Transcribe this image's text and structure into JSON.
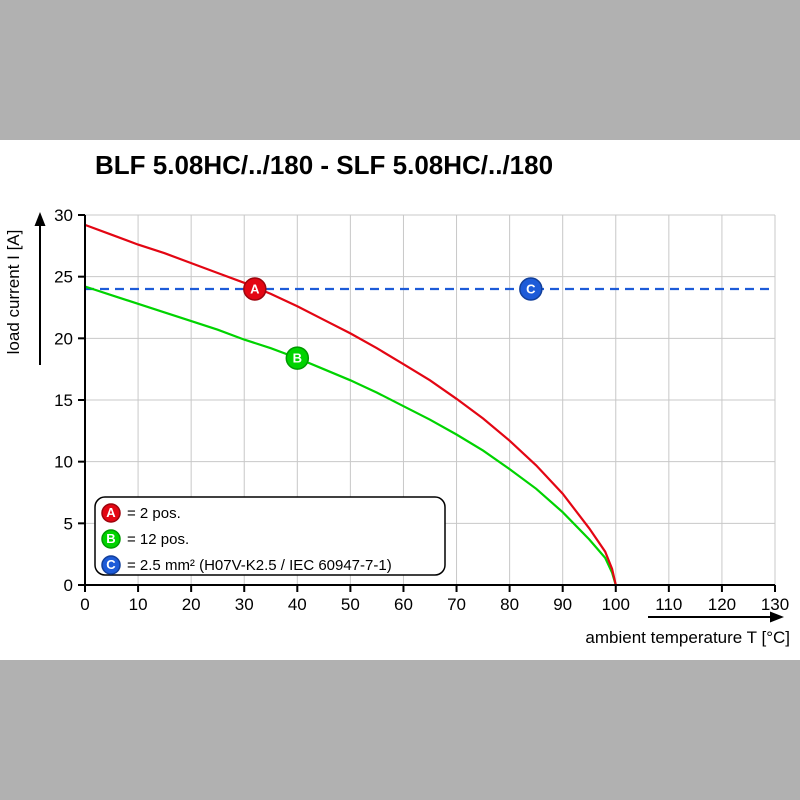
{
  "colors": {
    "background": "#b1b1b1",
    "panel": "#ffffff",
    "grid": "#c8c8c8",
    "axis": "#000000",
    "red": "#e30613",
    "green": "#00d300",
    "blue": "#1d5bd8"
  },
  "chart_data": {
    "type": "line",
    "title": "BLF 5.08HC/../180 - SLF 5.08HC/../180",
    "xlabel": "ambient temperature T [°C]",
    "ylabel": "load current I [A]",
    "xlim": [
      0,
      130
    ],
    "ylim": [
      0,
      30
    ],
    "xticks": [
      0,
      10,
      20,
      30,
      40,
      50,
      60,
      70,
      80,
      90,
      100,
      110,
      120,
      130
    ],
    "yticks": [
      0,
      5,
      10,
      15,
      20,
      25,
      30
    ],
    "grid": true,
    "legend_position": "bottom-left",
    "series": [
      {
        "name": "A",
        "label": "= 2 pos.",
        "color": "#e30613",
        "ring": "#9c040d",
        "style": "solid",
        "points": [
          [
            0,
            29.2
          ],
          [
            5,
            28.4
          ],
          [
            10,
            27.6
          ],
          [
            15,
            26.9
          ],
          [
            20,
            26.1
          ],
          [
            25,
            25.3
          ],
          [
            30,
            24.5
          ],
          [
            35,
            23.6
          ],
          [
            40,
            22.6
          ],
          [
            45,
            21.5
          ],
          [
            50,
            20.4
          ],
          [
            55,
            19.2
          ],
          [
            60,
            17.9
          ],
          [
            65,
            16.6
          ],
          [
            70,
            15.1
          ],
          [
            75,
            13.5
          ],
          [
            80,
            11.7
          ],
          [
            85,
            9.7
          ],
          [
            90,
            7.4
          ],
          [
            95,
            4.6
          ],
          [
            98,
            2.7
          ],
          [
            99.3,
            1.3
          ],
          [
            100,
            0
          ]
        ]
      },
      {
        "name": "B",
        "label": "= 12 pos.",
        "color": "#00d300",
        "ring": "#009a00",
        "style": "solid",
        "points": [
          [
            0,
            24.2
          ],
          [
            5,
            23.5
          ],
          [
            10,
            22.8
          ],
          [
            15,
            22.1
          ],
          [
            20,
            21.4
          ],
          [
            25,
            20.7
          ],
          [
            30,
            19.9
          ],
          [
            35,
            19.2
          ],
          [
            40,
            18.4
          ],
          [
            45,
            17.5
          ],
          [
            50,
            16.6
          ],
          [
            55,
            15.6
          ],
          [
            60,
            14.5
          ],
          [
            65,
            13.4
          ],
          [
            70,
            12.2
          ],
          [
            75,
            10.9
          ],
          [
            80,
            9.4
          ],
          [
            85,
            7.8
          ],
          [
            90,
            5.9
          ],
          [
            95,
            3.7
          ],
          [
            98,
            2.2
          ],
          [
            99.3,
            1.0
          ],
          [
            100,
            0
          ]
        ]
      },
      {
        "name": "C",
        "label": "= 2.5 mm² (H07V-K2.5 / IEC 60947-7-1)",
        "color": "#1d5bd8",
        "ring": "#123f9a",
        "style": "dashed",
        "points": [
          [
            0,
            24
          ],
          [
            130,
            24
          ]
        ]
      }
    ],
    "markers": [
      {
        "letter": "A",
        "x": 32,
        "y": 24,
        "color": "#e30613",
        "ring": "#9c040d"
      },
      {
        "letter": "B",
        "x": 40,
        "y": 18.4,
        "color": "#00d300",
        "ring": "#009a00"
      },
      {
        "letter": "C",
        "x": 84,
        "y": 24,
        "color": "#1d5bd8",
        "ring": "#123f9a"
      }
    ]
  }
}
